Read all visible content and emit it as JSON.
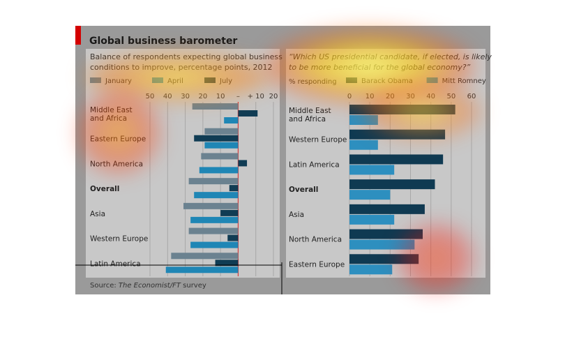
{
  "title": "Global business barometer",
  "source_prefix": "Source: ",
  "source_italic": "The Economist/FT",
  "source_suffix": " survey",
  "colors": {
    "background": "#ffffff",
    "panel": "#c8c8c8",
    "panel_frame": "#9a9a9a",
    "grid": "#a8a8a8",
    "zero_line": "#d63a3a",
    "january": "#6b8290",
    "april": "#1f86b5",
    "july": "#103c54",
    "obama": "#0f3a52",
    "romney": "#2d8fbf",
    "accent_bar": "#d40000",
    "text": "#222222"
  },
  "chart_data": [
    {
      "type": "bar",
      "orientation": "horizontal",
      "title": "Balance of respondents expecting global business conditions to improve, percentage points, 2012",
      "title_lines": [
        "Balance of respondents expecting global business",
        "conditions to improve, percentage points, 2012"
      ],
      "tick_labels": [
        "50",
        "40",
        "30",
        "20",
        "10",
        "–",
        "+ 10",
        "20"
      ],
      "tick_values": [
        -50,
        -40,
        -30,
        -20,
        -10,
        0,
        10,
        20
      ],
      "xlim": [
        -50,
        20
      ],
      "grid": true,
      "legend_position": "top",
      "categories": [
        "Middle East and Africa",
        "Eastern Europe",
        "North America",
        "Overall",
        "Asia",
        "Western Europe",
        "Latin America"
      ],
      "category_lines": [
        [
          "Middle East",
          "and Africa"
        ],
        [
          "Eastern Europe"
        ],
        [
          "North America"
        ],
        [
          "Overall"
        ],
        [
          "Asia"
        ],
        [
          "Western Europe"
        ],
        [
          "Latin America"
        ]
      ],
      "bold_category": "Overall",
      "series": [
        {
          "name": "January",
          "values": [
            -26,
            -19,
            -21,
            -28,
            -31,
            -28,
            -38
          ]
        },
        {
          "name": "July",
          "values": [
            11,
            -25,
            5,
            -5,
            -10,
            -6,
            -13
          ]
        },
        {
          "name": "April",
          "values": [
            -8,
            -19,
            -22,
            -25,
            -27,
            -27,
            -41
          ]
        }
      ]
    },
    {
      "type": "bar",
      "orientation": "horizontal",
      "title": "“Which US presidential candidate, if elected, is likely to be more beneficial for the global economy?”",
      "title_lines": [
        "“Which US presidential candidate, if elected, is likely",
        "to be more beneficial for the global economy?”"
      ],
      "unit_label": "% responding",
      "tick_labels": [
        "0",
        "10",
        "20",
        "30",
        "40",
        "50",
        "60"
      ],
      "tick_values": [
        0,
        10,
        20,
        30,
        40,
        50,
        60
      ],
      "xlim": [
        0,
        60
      ],
      "grid": true,
      "legend_position": "top",
      "categories": [
        "Middle East and Africa",
        "Western Europe",
        "Latin America",
        "Overall",
        "Asia",
        "North America",
        "Eastern Europe"
      ],
      "category_lines": [
        [
          "Middle East",
          "and Africa"
        ],
        [
          "Western Europe"
        ],
        [
          "Latin America"
        ],
        [
          "Overall"
        ],
        [
          "Asia"
        ],
        [
          "North America"
        ],
        [
          "Eastern Europe"
        ]
      ],
      "bold_category": "Overall",
      "series": [
        {
          "name": "Barack Obama",
          "values": [
            52,
            47,
            46,
            42,
            37,
            36,
            34
          ]
        },
        {
          "name": "Mitt Romney",
          "values": [
            14,
            14,
            22,
            20,
            22,
            32,
            21
          ]
        }
      ]
    }
  ]
}
